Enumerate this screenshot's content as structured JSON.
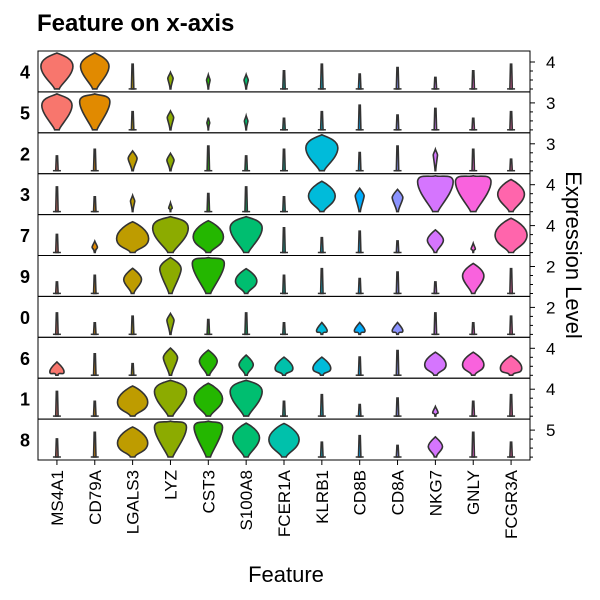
{
  "chart_data": {
    "type": "violin",
    "title": "Feature on x-axis",
    "xlabel": "Feature",
    "ylabel": "Expression Level",
    "features": [
      "MS4A1",
      "CD79A",
      "LGALS3",
      "LYZ",
      "CST3",
      "S100A8",
      "FCER1A",
      "KLRB1",
      "CD8B",
      "CD8A",
      "NKG7",
      "GNLY",
      "FCGR3A"
    ],
    "feature_colors": [
      "#F8766D",
      "#E18A00",
      "#BE9C00",
      "#8CAB00",
      "#24B700",
      "#00BE70",
      "#00C1AB",
      "#00BBDA",
      "#00ACFC",
      "#8B93FF",
      "#D575FE",
      "#F962DD",
      "#FF65AC"
    ],
    "clusters": [
      {
        "label": "4",
        "ytick": "4",
        "ymax": 4.4,
        "widths": [
          0.9,
          0.8,
          0.05,
          0.15,
          0.1,
          0.12,
          0.03,
          0.03,
          0.03,
          0.03,
          0.03,
          0.03,
          0.03
        ],
        "peaks": [
          0.55,
          0.55,
          0.0,
          0.2,
          0.15,
          0.15,
          0.0,
          0.0,
          0.0,
          0.0,
          0.0,
          0.0,
          0.0
        ]
      },
      {
        "label": "5",
        "ytick": "3",
        "ymax": 3.5,
        "widths": [
          0.85,
          0.85,
          0.03,
          0.18,
          0.08,
          0.1,
          0.03,
          0.03,
          0.03,
          0.03,
          0.03,
          0.03,
          0.03
        ],
        "peaks": [
          0.6,
          0.7,
          0.0,
          0.25,
          0.1,
          0.15,
          0.0,
          0.0,
          0.0,
          0.0,
          0.0,
          0.0,
          0.0
        ]
      },
      {
        "label": "2",
        "ytick": "3",
        "ymax": 3.5,
        "widths": [
          0.05,
          0.05,
          0.25,
          0.2,
          0.05,
          0.05,
          0.03,
          0.9,
          0.05,
          0.05,
          0.12,
          0.05,
          0.05
        ],
        "peaks": [
          0.0,
          0.0,
          0.25,
          0.2,
          0.0,
          0.0,
          0.0,
          0.55,
          0.0,
          0.0,
          0.35,
          0.0,
          0.0
        ]
      },
      {
        "label": "3",
        "ytick": "4",
        "ymax": 4.3,
        "widths": [
          0.05,
          0.05,
          0.12,
          0.1,
          0.05,
          0.05,
          0.03,
          0.75,
          0.25,
          0.3,
          1.0,
          1.0,
          0.75
        ],
        "peaks": [
          0.0,
          0.0,
          0.2,
          0.0,
          0.0,
          0.0,
          0.0,
          0.35,
          0.35,
          0.3,
          0.75,
          0.75,
          0.4
        ]
      },
      {
        "label": "7",
        "ytick": "4",
        "ymax": 4.4,
        "widths": [
          0.03,
          0.15,
          0.9,
          1.0,
          0.85,
          0.9,
          0.03,
          0.03,
          0.03,
          0.03,
          0.45,
          0.12,
          0.9
        ],
        "peaks": [
          0.0,
          0.05,
          0.3,
          0.6,
          0.35,
          0.6,
          0.0,
          0.0,
          0.0,
          0.0,
          0.25,
          0.0,
          0.4
        ]
      },
      {
        "label": "9",
        "ytick": "2",
        "ymax": 2.4,
        "widths": [
          0.03,
          0.03,
          0.5,
          0.6,
          0.9,
          0.6,
          0.03,
          0.03,
          0.03,
          0.03,
          0.03,
          0.6,
          0.03
        ],
        "peaks": [
          0.0,
          0.0,
          0.3,
          0.6,
          0.8,
          0.25,
          0.0,
          0.0,
          0.0,
          0.0,
          0.0,
          0.4,
          0.0
        ]
      },
      {
        "label": "0",
        "ytick": "2",
        "ymax": 2.4,
        "widths": [
          0.05,
          0.05,
          0.05,
          0.2,
          0.05,
          0.05,
          0.05,
          0.3,
          0.3,
          0.3,
          0.05,
          0.05,
          0.05
        ],
        "peaks": [
          0.0,
          0.0,
          0.0,
          0.3,
          0.0,
          0.0,
          0.0,
          0.0,
          0.0,
          0.0,
          0.0,
          0.0,
          0.0
        ]
      },
      {
        "label": "6",
        "ytick": "4",
        "ymax": 4.4,
        "widths": [
          0.4,
          0.05,
          0.05,
          0.4,
          0.5,
          0.4,
          0.5,
          0.5,
          0.05,
          0.05,
          0.6,
          0.6,
          0.6
        ],
        "peaks": [
          0.0,
          0.0,
          0.0,
          0.4,
          0.3,
          0.2,
          0.1,
          0.1,
          0.0,
          0.0,
          0.2,
          0.2,
          0.1
        ]
      },
      {
        "label": "1",
        "ytick": "4",
        "ymax": 4.4,
        "widths": [
          0.05,
          0.05,
          0.85,
          0.9,
          0.8,
          0.9,
          0.03,
          0.03,
          0.03,
          0.03,
          0.15,
          0.05,
          0.03
        ],
        "peaks": [
          0.0,
          0.0,
          0.3,
          0.6,
          0.4,
          0.6,
          0.0,
          0.0,
          0.0,
          0.0,
          0.0,
          0.0,
          0.0
        ]
      },
      {
        "label": "8",
        "ytick": "5",
        "ymax": 5.4,
        "widths": [
          0.05,
          0.05,
          0.85,
          0.9,
          0.8,
          0.75,
          0.85,
          0.03,
          0.03,
          0.03,
          0.4,
          0.03,
          0.03
        ],
        "peaks": [
          0.0,
          0.0,
          0.3,
          0.9,
          0.75,
          0.45,
          0.4,
          0.0,
          0.0,
          0.0,
          0.2,
          0.0,
          0.0
        ]
      }
    ]
  }
}
